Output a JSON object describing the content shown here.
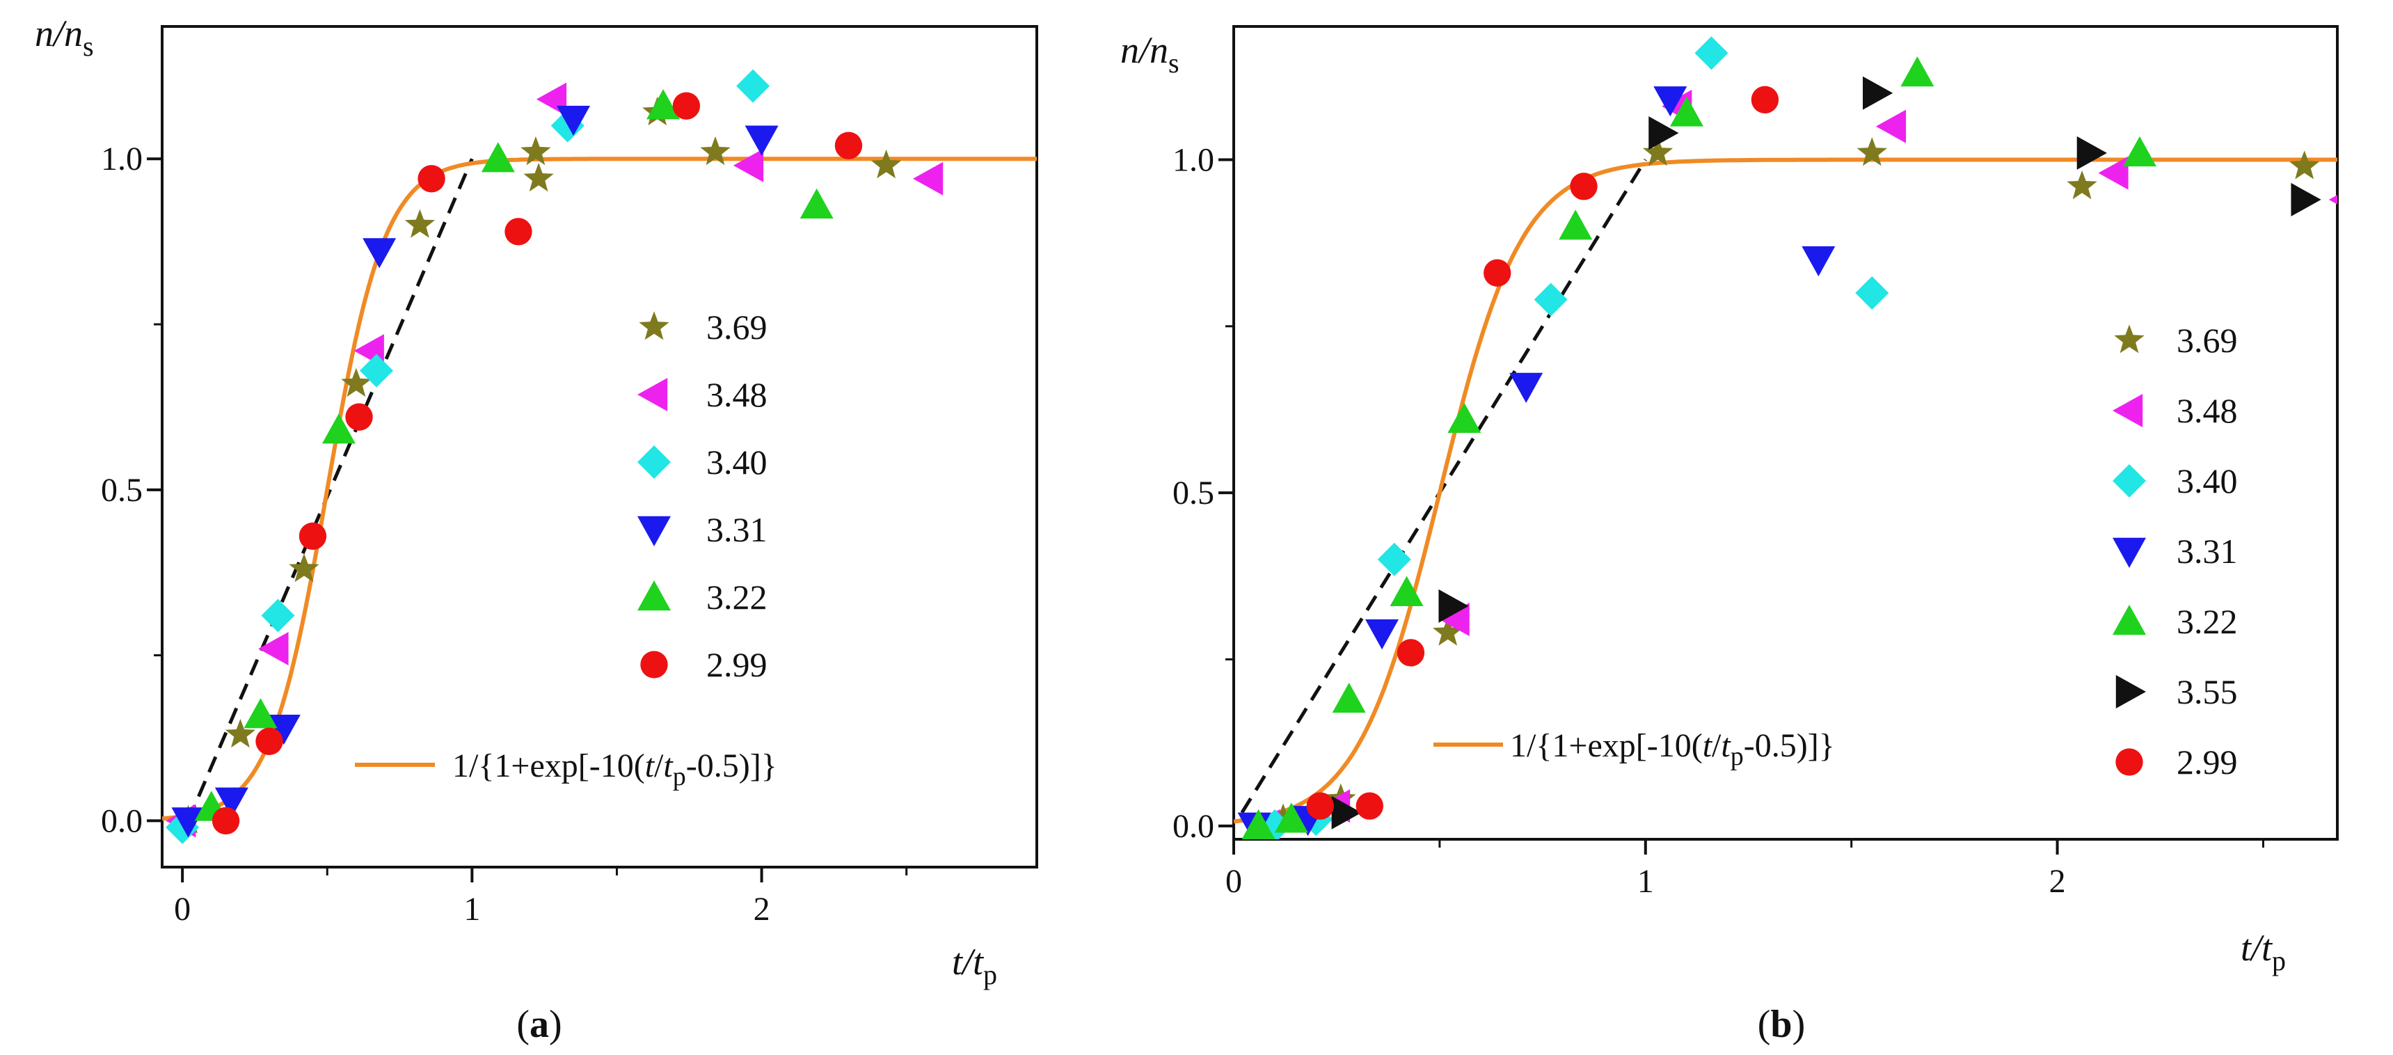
{
  "chart_data": [
    {
      "type": "scatter",
      "panel": "(a)",
      "caption_open": "(",
      "caption_letter": "a",
      "caption_close": ")",
      "xlabel_var": "t/t",
      "xlabel_sub": "p",
      "ylabel_var": "n/n",
      "ylabel_sub": "s",
      "xlim": [
        -0.07,
        2.95
      ],
      "ylim": [
        -0.07,
        1.2
      ],
      "xticks": [
        0,
        1,
        2
      ],
      "xtick_labels": [
        "0",
        "1",
        "2"
      ],
      "yticks": [
        0.0,
        0.5,
        1.0
      ],
      "ytick_labels": [
        "0.0",
        "0.5",
        "1.0"
      ],
      "fit_curve": {
        "k": 10,
        "x0": 0.5,
        "color": "#f08a24",
        "x_range": [
          -0.07,
          2.95
        ]
      },
      "fit_label_prefix": "1/{1+exp[-10(",
      "fit_label_t": "t",
      "fit_label_slash": "/",
      "fit_label_tp": "t",
      "fit_label_p": "p",
      "fit_label_suffix": "-0.5)]}",
      "dashed_line": {
        "points": [
          [
            0.02,
            0.0
          ],
          [
            1.0,
            1.0
          ]
        ],
        "color": "#111111"
      },
      "series": [
        {
          "name": "3.69",
          "marker": "star",
          "color": "#7f7a1e",
          "points": [
            [
              0.02,
              0.0
            ],
            [
              0.2,
              0.13
            ],
            [
              0.42,
              0.38
            ],
            [
              0.6,
              0.66
            ],
            [
              0.82,
              0.9
            ],
            [
              1.22,
              1.01
            ],
            [
              1.23,
              0.97
            ],
            [
              1.64,
              1.07
            ],
            [
              1.84,
              1.01
            ],
            [
              2.43,
              0.99
            ]
          ]
        },
        {
          "name": "3.48",
          "marker": "tri-left",
          "color": "#ee22ee",
          "points": [
            [
              0.0,
              0.0
            ],
            [
              0.32,
              0.26
            ],
            [
              0.65,
              0.71
            ],
            [
              1.28,
              1.09
            ],
            [
              1.96,
              0.99
            ],
            [
              2.58,
              0.97
            ]
          ]
        },
        {
          "name": "3.40",
          "marker": "diamond",
          "color": "#22e5e5",
          "points": [
            [
              0.0,
              -0.01
            ],
            [
              0.33,
              0.31
            ],
            [
              0.67,
              0.68
            ],
            [
              1.33,
              1.05
            ],
            [
              1.97,
              1.11
            ]
          ]
        },
        {
          "name": "3.31",
          "marker": "tri-down",
          "color": "#1a1aee",
          "points": [
            [
              0.02,
              0.0
            ],
            [
              0.17,
              0.03
            ],
            [
              0.35,
              0.14
            ],
            [
              0.68,
              0.86
            ],
            [
              1.35,
              1.06
            ],
            [
              2.0,
              1.03
            ]
          ]
        },
        {
          "name": "3.22",
          "marker": "tri-up",
          "color": "#1ed21e",
          "points": [
            [
              0.1,
              0.02
            ],
            [
              0.27,
              0.16
            ],
            [
              0.54,
              0.59
            ],
            [
              1.09,
              1.0
            ],
            [
              1.66,
              1.08
            ],
            [
              2.19,
              0.93
            ]
          ]
        },
        {
          "name": "2.99",
          "marker": "circle",
          "color": "#ee1111",
          "points": [
            [
              0.15,
              0.0
            ],
            [
              0.3,
              0.12
            ],
            [
              0.45,
              0.43
            ],
            [
              0.61,
              0.61
            ],
            [
              0.86,
              0.97
            ],
            [
              1.16,
              0.89
            ],
            [
              1.74,
              1.08
            ],
            [
              2.3,
              1.02
            ]
          ]
        }
      ]
    },
    {
      "type": "scatter",
      "panel": "(b)",
      "caption_open": "(",
      "caption_letter": "b",
      "caption_close": ")",
      "xlabel_var": "t/t",
      "xlabel_sub": "p",
      "ylabel_var": "n/n",
      "ylabel_sub": "s",
      "xlim": [
        0,
        2.68
      ],
      "ylim": [
        -0.02,
        1.2
      ],
      "xticks": [
        0,
        1,
        2
      ],
      "xtick_labels": [
        "0",
        "1",
        "2"
      ],
      "yticks": [
        0.0,
        0.5,
        1.0
      ],
      "ytick_labels": [
        "0.0",
        "0.5",
        "1.0"
      ],
      "fit_curve": {
        "k": 10,
        "x0": 0.5,
        "color": "#f08a24",
        "x_range": [
          0,
          2.68
        ]
      },
      "fit_label_prefix": "1/{1+exp[-10(",
      "fit_label_t": "t",
      "fit_label_slash": "/",
      "fit_label_tp": "t",
      "fit_label_p": "p",
      "fit_label_suffix": "-0.5)]}",
      "dashed_line": {
        "points": [
          [
            0.02,
            0.02
          ],
          [
            1.0,
            1.0
          ]
        ],
        "color": "#111111"
      },
      "series": [
        {
          "name": "3.69",
          "marker": "star",
          "color": "#7f7a1e",
          "points": [
            [
              0.12,
              0.01
            ],
            [
              0.26,
              0.04
            ],
            [
              0.52,
              0.29
            ],
            [
              1.03,
              1.01
            ],
            [
              1.55,
              1.01
            ],
            [
              2.06,
              0.96
            ],
            [
              2.6,
              0.99
            ]
          ]
        },
        {
          "name": "3.48",
          "marker": "tri-left",
          "color": "#ee22ee",
          "points": [
            [
              0.08,
              0.0
            ],
            [
              0.25,
              0.03
            ],
            [
              0.54,
              0.31
            ],
            [
              1.08,
              1.08
            ],
            [
              1.6,
              1.05
            ],
            [
              2.14,
              0.98
            ],
            [
              2.7,
              0.94
            ]
          ]
        },
        {
          "name": "3.40",
          "marker": "diamond",
          "color": "#22e5e5",
          "points": [
            [
              0.1,
              0.0
            ],
            [
              0.2,
              0.01
            ],
            [
              0.39,
              0.4
            ],
            [
              0.77,
              0.79
            ],
            [
              1.16,
              1.16
            ],
            [
              1.55,
              0.8
            ]
          ]
        },
        {
          "name": "3.31",
          "marker": "tri-down",
          "color": "#1a1aee",
          "points": [
            [
              0.05,
              0.0
            ],
            [
              0.18,
              0.01
            ],
            [
              0.36,
              0.29
            ],
            [
              0.71,
              0.66
            ],
            [
              1.06,
              1.09
            ],
            [
              1.42,
              0.85
            ]
          ]
        },
        {
          "name": "3.22",
          "marker": "tri-up",
          "color": "#1ed21e",
          "points": [
            [
              0.06,
              0.0
            ],
            [
              0.14,
              0.01
            ],
            [
              0.28,
              0.19
            ],
            [
              0.42,
              0.35
            ],
            [
              0.56,
              0.61
            ],
            [
              0.83,
              0.9
            ],
            [
              1.1,
              1.07
            ],
            [
              1.66,
              1.13
            ],
            [
              2.2,
              1.01
            ]
          ]
        },
        {
          "name": "3.55",
          "marker": "tri-right",
          "color": "#111111",
          "points": [
            [
              0.27,
              0.02
            ],
            [
              0.53,
              0.33
            ],
            [
              1.04,
              1.04
            ],
            [
              1.56,
              1.1
            ],
            [
              2.08,
              1.01
            ],
            [
              2.6,
              0.94
            ]
          ]
        },
        {
          "name": "2.99",
          "marker": "circle",
          "color": "#ee1111",
          "points": [
            [
              0.21,
              0.03
            ],
            [
              0.33,
              0.03
            ],
            [
              0.43,
              0.26
            ],
            [
              0.64,
              0.83
            ],
            [
              0.85,
              0.96
            ],
            [
              1.29,
              1.09
            ]
          ]
        }
      ]
    }
  ]
}
